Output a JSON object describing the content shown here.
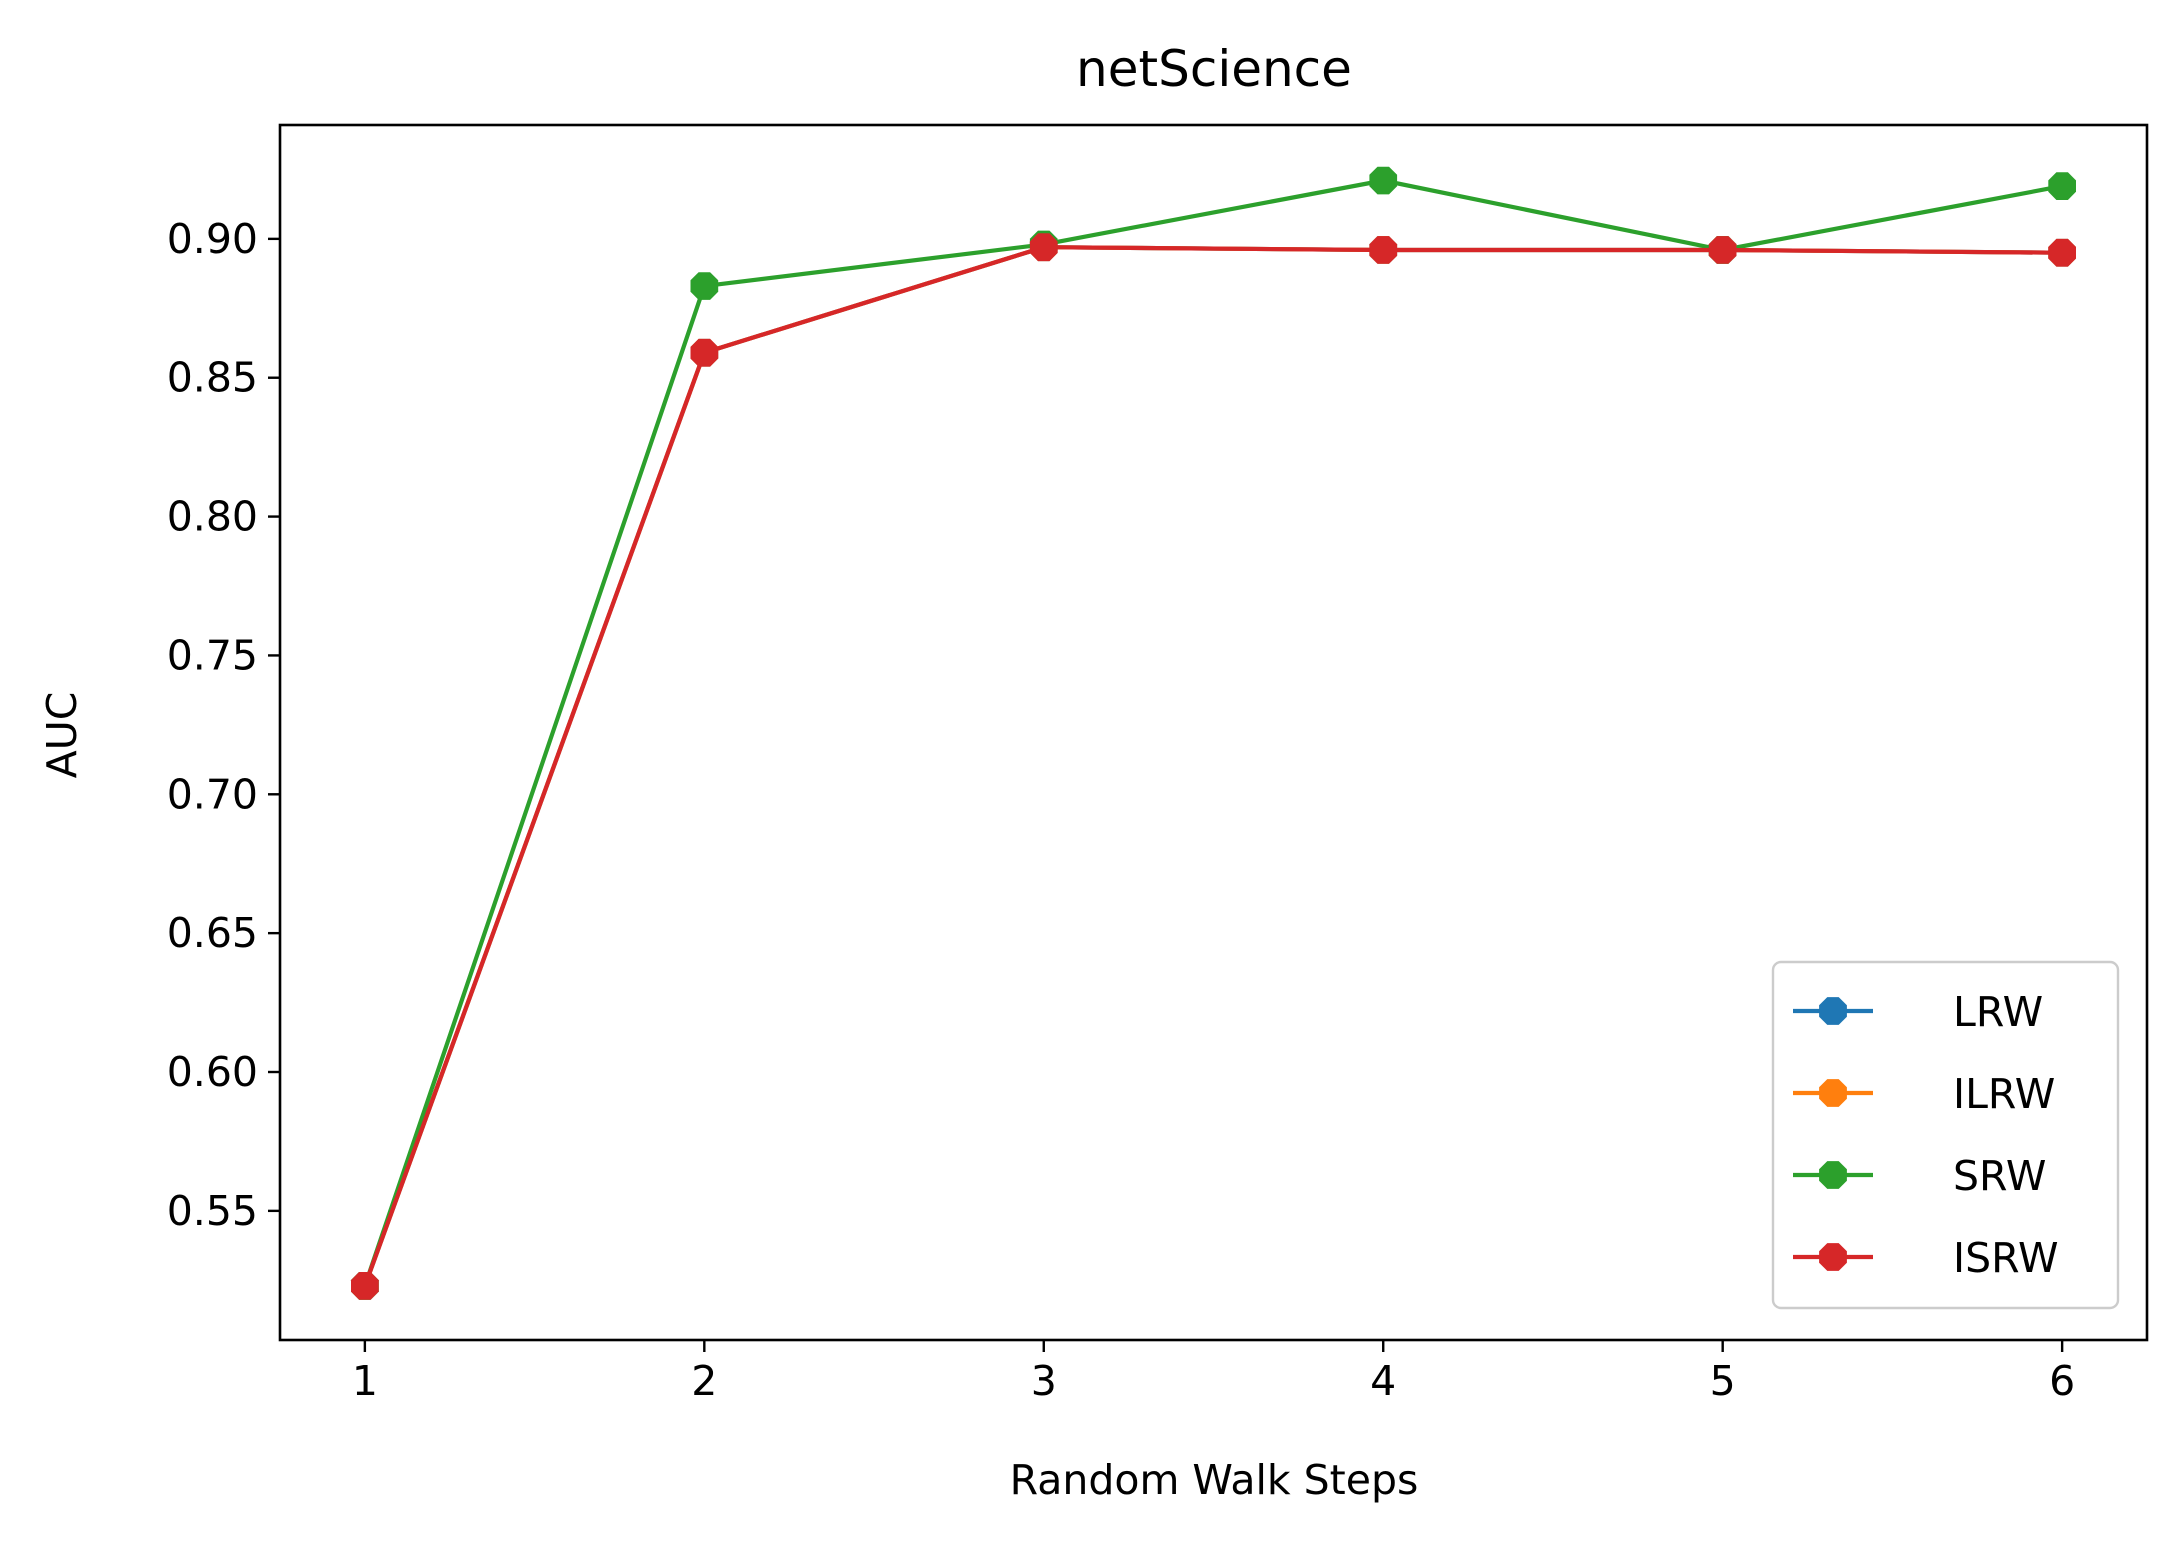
{
  "chart_data": {
    "type": "line",
    "title": "netScience",
    "xlabel": "Random Walk Steps",
    "ylabel": "AUC",
    "x": [
      1,
      2,
      3,
      4,
      5,
      6
    ],
    "xticks": [
      "1",
      "2",
      "3",
      "4",
      "5",
      "6"
    ],
    "yticks": [
      "0.55",
      "0.60",
      "0.65",
      "0.70",
      "0.75",
      "0.80",
      "0.85",
      "0.90"
    ],
    "xlim": [
      0.75,
      6.25
    ],
    "ylim": [
      0.5035,
      0.941
    ],
    "grid": false,
    "legend_position": "lower-right",
    "marker": "octagon",
    "series": [
      {
        "name": "LRW",
        "color": "#1f77b4",
        "values": [
          0.523,
          0.859,
          0.897,
          0.896,
          0.896,
          0.895
        ]
      },
      {
        "name": "ILRW",
        "color": "#ff7f0e",
        "values": [
          0.523,
          0.859,
          0.897,
          0.896,
          0.896,
          0.895
        ]
      },
      {
        "name": "SRW",
        "color": "#2ca02c",
        "values": [
          0.523,
          0.883,
          0.898,
          0.921,
          0.896,
          0.919
        ]
      },
      {
        "name": "ISRW",
        "color": "#d62728",
        "values": [
          0.523,
          0.859,
          0.897,
          0.896,
          0.896,
          0.895
        ]
      }
    ]
  }
}
